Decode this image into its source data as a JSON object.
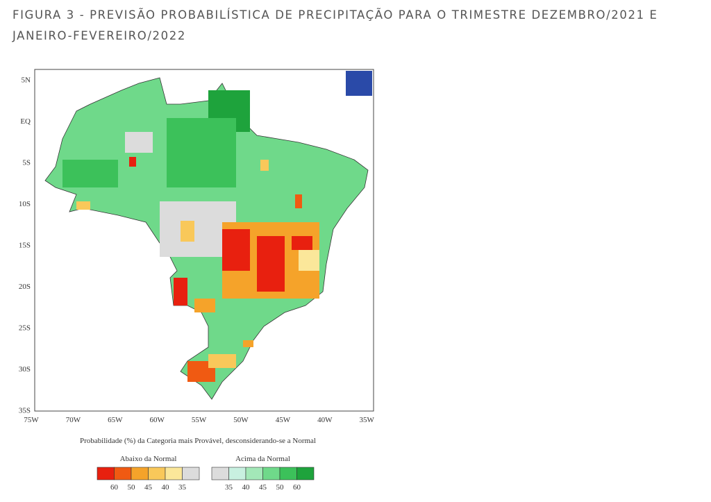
{
  "header": {
    "title_lines": [
      "FIGURA 3 -  PREVISÃO PROBABILÍSTICA DE PRECIPITAÇÃO PARA O TRIMESTRE DEZEMBRO/2021 E",
      "JANEIRO-FEVEREIRO/2022"
    ]
  },
  "map": {
    "lat_labels": [
      "5N",
      "EQ",
      "5S",
      "10S",
      "15S",
      "20S",
      "25S",
      "30S",
      "35S"
    ],
    "lon_labels": [
      "75W",
      "70W",
      "65W",
      "60W",
      "55W",
      "50W",
      "45W",
      "40W",
      "35W"
    ],
    "caption": "Probabilidade (%) da Categoria mais Provável, desconsiderando-se a Normal",
    "legend": {
      "below": {
        "title": "Abaixo da Normal",
        "colors": [
          "#e8200f",
          "#f05a12",
          "#f5a32a",
          "#f9c85a",
          "#fbe79a",
          "#dcdcdc"
        ],
        "labels": [
          "60",
          "50",
          "45",
          "40",
          "35"
        ]
      },
      "above": {
        "title": "Acima da Normal",
        "colors": [
          "#dcdcdc",
          "#c8f0e0",
          "#a3e8b8",
          "#6fd98a",
          "#3cc15a",
          "#1ea33c"
        ],
        "labels": [
          "35",
          "40",
          "45",
          "50",
          "60"
        ]
      }
    }
  }
}
